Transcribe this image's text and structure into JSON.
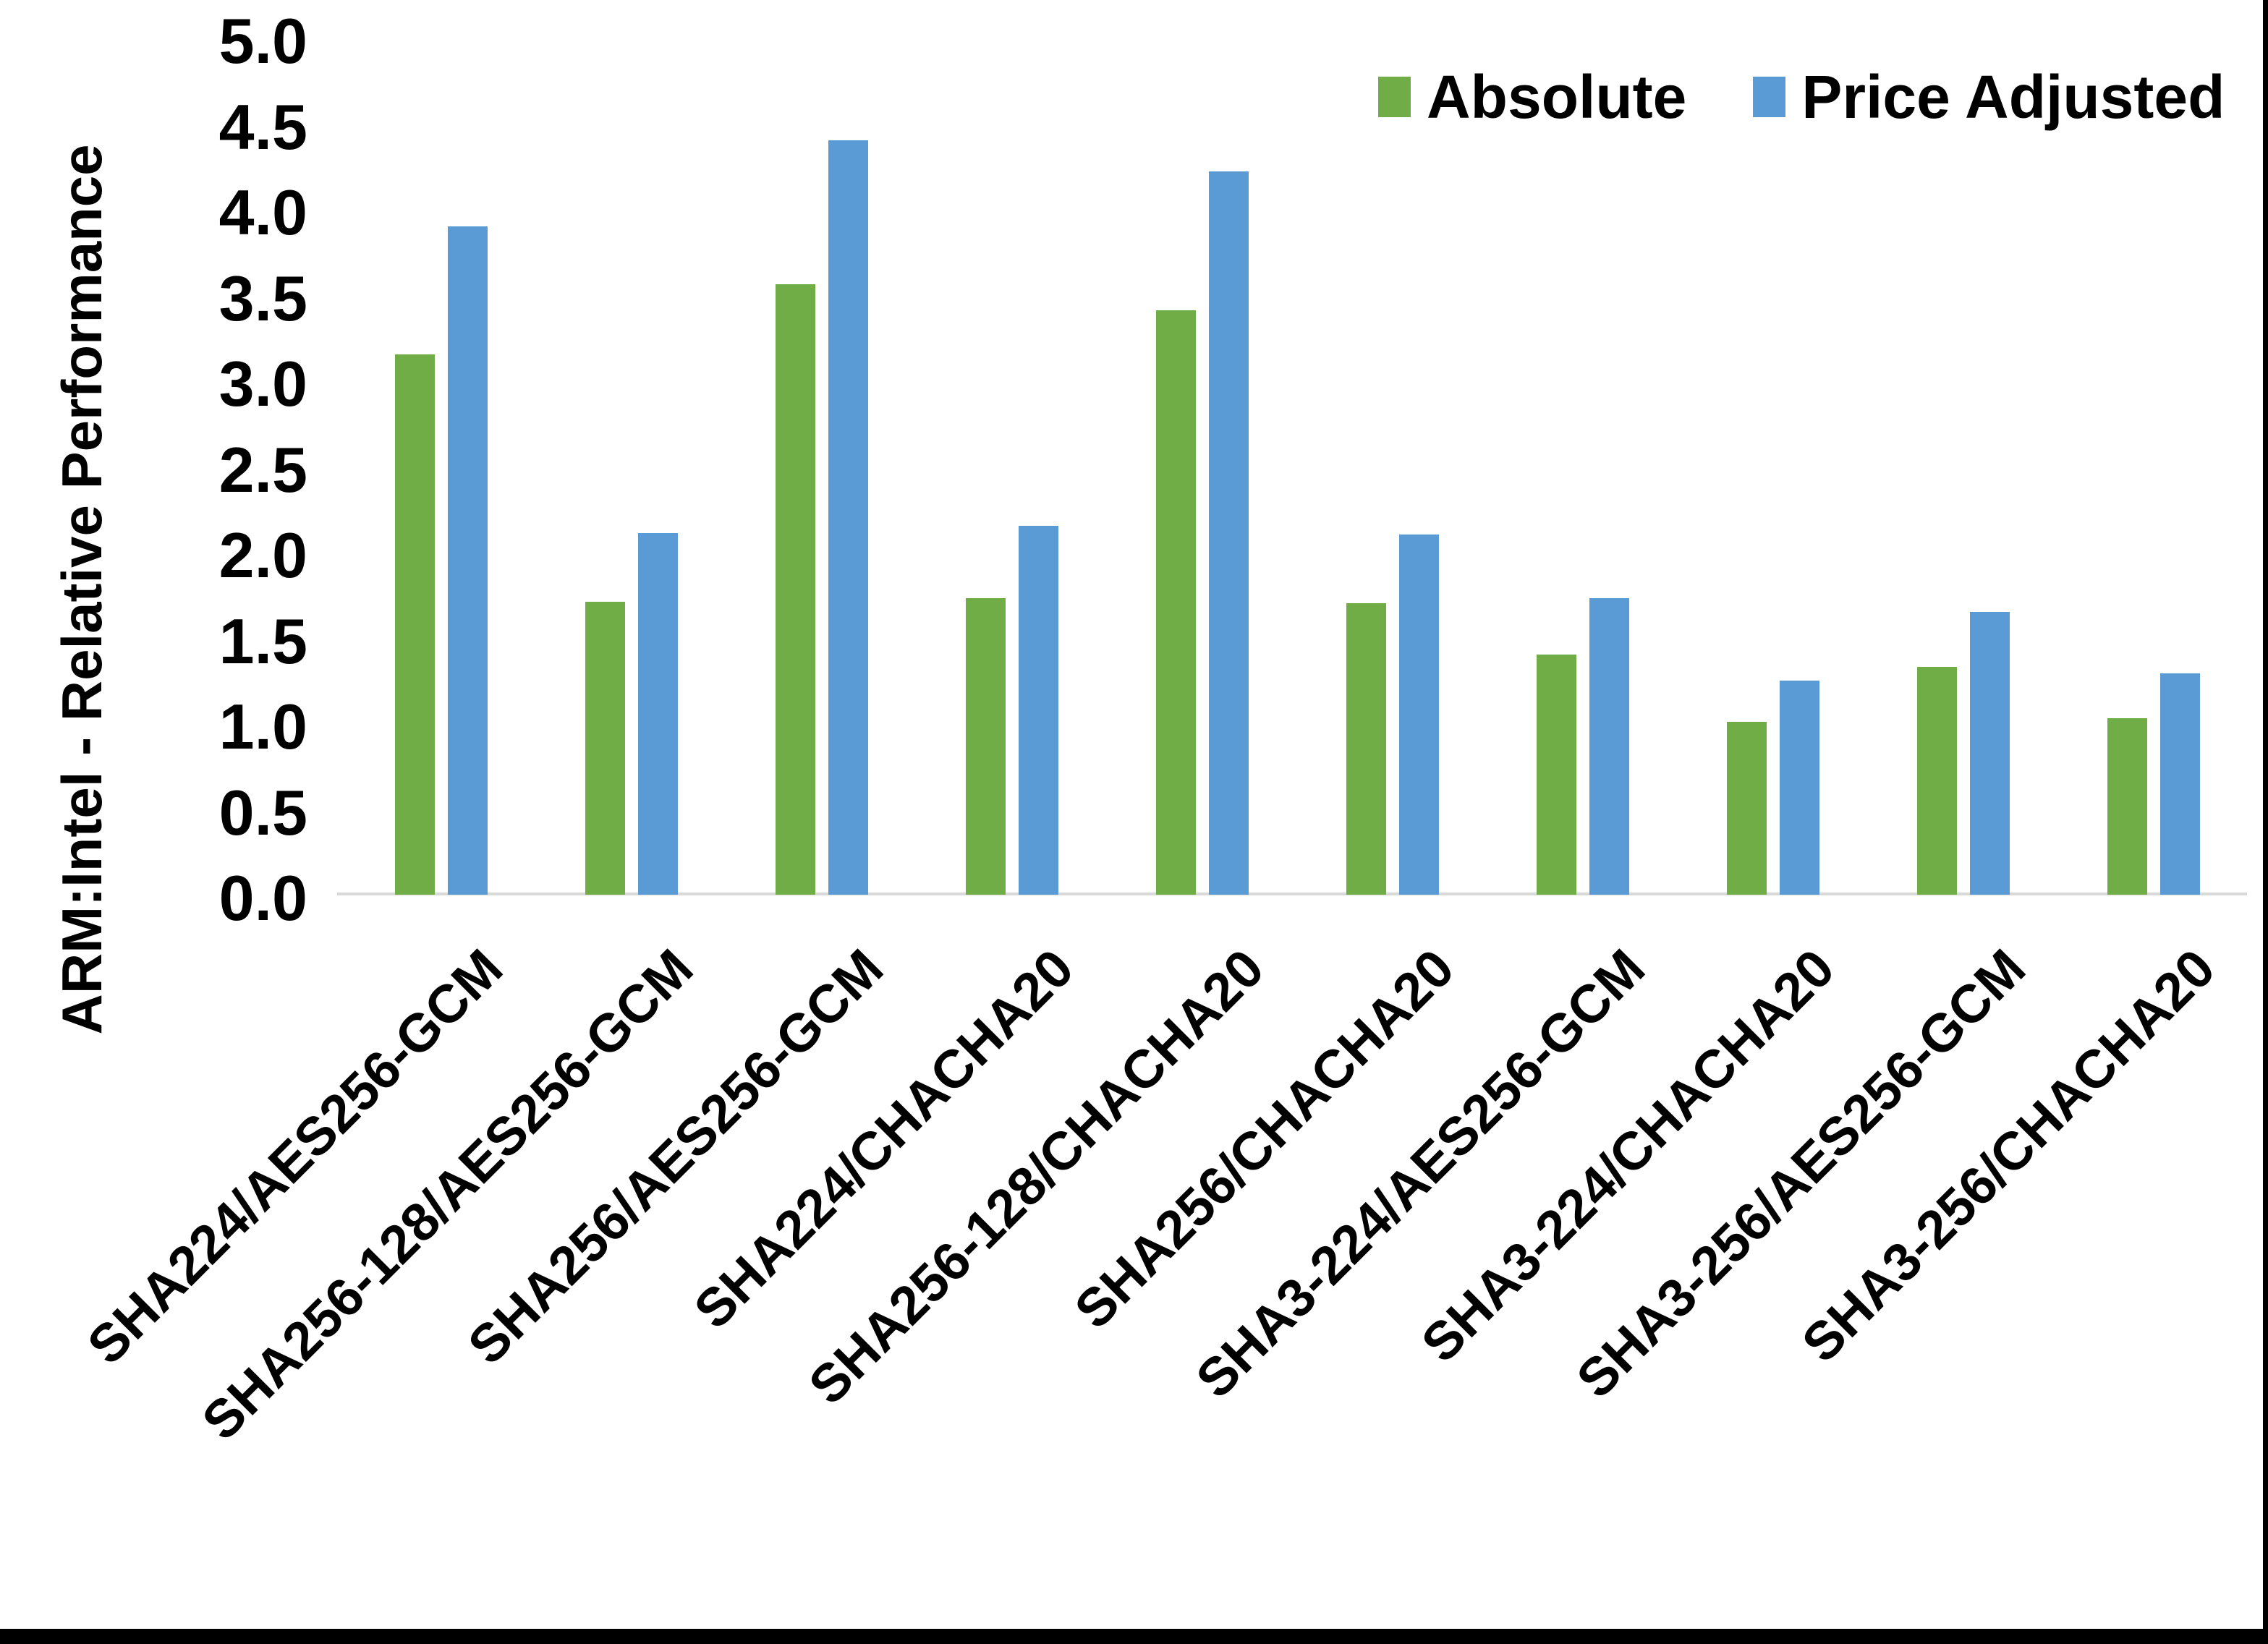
{
  "chart_data": {
    "type": "bar",
    "title": "",
    "xlabel": "",
    "ylabel": "ARM:Intel - Relative Performance",
    "ylim": [
      0.0,
      5.0
    ],
    "ytick_step": 0.5,
    "grid": false,
    "legend_position": "top-right",
    "categories": [
      "SHA224/AES256-GCM",
      "SHA256-128/AES256-GCM",
      "SHA256/AES256-GCM",
      "SHA224/CHACHA20",
      "SHA256-128/CHACHA20",
      "SHA256/CHACHA20",
      "SHA3-224/AES256-GCM",
      "SHA3-224/CHACHA20",
      "SHA3-256/AES256-GCM",
      "SHA3-256/CHACHA20"
    ],
    "series": [
      {
        "name": "Absolute",
        "color": "#70AD47",
        "values": [
          3.15,
          1.71,
          3.56,
          1.73,
          3.41,
          1.7,
          1.4,
          1.01,
          1.33,
          1.03
        ]
      },
      {
        "name": "Price Adjusted",
        "color": "#5B9BD5",
        "values": [
          3.9,
          2.11,
          4.4,
          2.15,
          4.22,
          2.1,
          1.73,
          1.25,
          1.65,
          1.29
        ]
      }
    ]
  },
  "axis": {
    "y_tick_labels": [
      "0.0",
      "0.5",
      "1.0",
      "1.5",
      "2.0",
      "2.5",
      "3.0",
      "3.5",
      "4.0",
      "4.5",
      "5.0"
    ]
  },
  "legend": {
    "items": [
      {
        "label": "Absolute",
        "color": "#70AD47"
      },
      {
        "label": "Price Adjusted",
        "color": "#5B9BD5"
      }
    ]
  },
  "colors": {
    "background": "#FFFFFF",
    "axis_line": "#D9D9D9",
    "frame": "#000000",
    "text": "#000000"
  }
}
